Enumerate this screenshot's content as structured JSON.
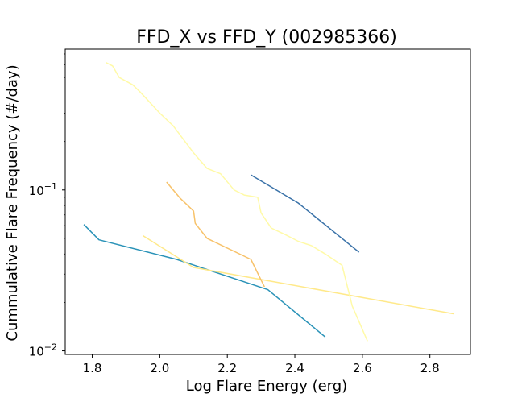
{
  "chart_data": {
    "type": "line",
    "title": "FFD_X vs FFD_Y (002985366)",
    "xlabel": "Log Flare Energy (erg)",
    "ylabel": "Cummulative Flare Frequency (#/day)",
    "xlim": [
      1.72,
      2.92
    ],
    "ylim": [
      0.0095,
      0.75
    ],
    "yscale": "log",
    "grid": false,
    "x_ticks": [
      {
        "value": 1.8,
        "label": "1.8"
      },
      {
        "value": 2.0,
        "label": "2.0"
      },
      {
        "value": 2.2,
        "label": "2.2"
      },
      {
        "value": 2.4,
        "label": "2.4"
      },
      {
        "value": 2.6,
        "label": "2.6"
      },
      {
        "value": 2.8,
        "label": "2.8"
      }
    ],
    "y_ticks": [
      {
        "value": 0.01,
        "base": "10",
        "exp": "−2"
      },
      {
        "value": 0.1,
        "base": "10",
        "exp": "−1"
      }
    ],
    "series": [
      {
        "color": "#3a72a8",
        "x": [
          2.27,
          2.41,
          2.59
        ],
        "y": [
          0.124,
          0.083,
          0.041
        ]
      },
      {
        "color": "#2b93b8",
        "x": [
          1.775,
          1.82,
          2.05,
          2.32,
          2.49
        ],
        "y": [
          0.061,
          0.049,
          0.037,
          0.024,
          0.0122
        ]
      },
      {
        "color": "#ffe98a",
        "x": [
          1.95,
          2.1,
          2.87
        ],
        "y": [
          0.052,
          0.033,
          0.017
        ]
      },
      {
        "color": "#f7c26a",
        "x": [
          2.02,
          2.06,
          2.1,
          2.105,
          2.14,
          2.27,
          2.31
        ],
        "y": [
          0.112,
          0.089,
          0.074,
          0.062,
          0.05,
          0.037,
          0.025
        ]
      },
      {
        "color": "#fffaa8",
        "x": [
          1.84,
          1.86,
          1.88,
          1.92,
          1.94,
          1.96,
          2.0,
          2.04,
          2.06,
          2.1,
          2.14,
          2.18,
          2.22,
          2.25,
          2.29,
          2.3,
          2.33,
          2.37,
          2.41,
          2.45,
          2.49,
          2.54,
          2.57,
          2.615
        ],
        "y": [
          0.62,
          0.59,
          0.5,
          0.45,
          0.41,
          0.37,
          0.3,
          0.25,
          0.22,
          0.17,
          0.136,
          0.126,
          0.1,
          0.093,
          0.09,
          0.072,
          0.058,
          0.053,
          0.048,
          0.045,
          0.04,
          0.034,
          0.019,
          0.0115
        ]
      }
    ]
  }
}
